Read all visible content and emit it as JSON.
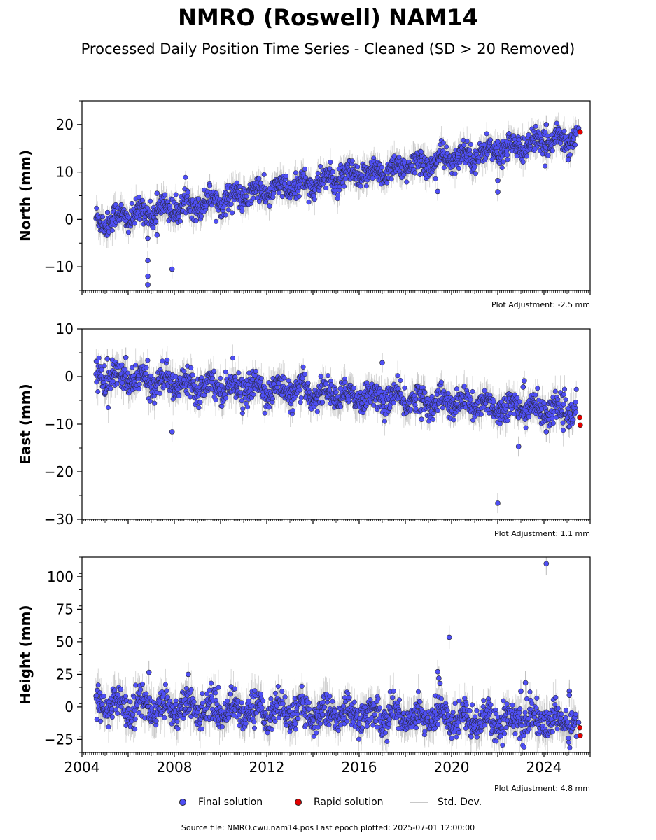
{
  "title": "NMRO (Roswell) NAM14",
  "subtitle": "Processed Daily Position Time Series - Cleaned (SD > 20 Removed)",
  "source_text": "Source file: NMRO.cwu.nam14.pos  Last epoch plotted: 2025-07-01 12:00:00",
  "legend": {
    "final_label": "Final solution",
    "rapid_label": "Rapid solution",
    "std_label": "Std. Dev."
  },
  "colors": {
    "final": "#4f4ff5",
    "rapid": "#e30000",
    "std_dev": "#bbbbbb",
    "edge": "#222222"
  },
  "chart_data": [
    {
      "type": "scatter",
      "ylabel": "North (mm)",
      "adjustment_label": "Plot Adjustment: -2.5 mm",
      "xlim": [
        2004,
        2026
      ],
      "ylim": [
        -15,
        25
      ],
      "yticks": [
        -10,
        0,
        10,
        20
      ],
      "ytick_labels": [
        "−10",
        "0",
        "10",
        "20"
      ],
      "trend": {
        "x": [
          2004.6,
          2025.4
        ],
        "y": [
          -0.5,
          17.5
        ]
      },
      "scatter_sd": 1.3,
      "final_outliers": [
        [
          2006.85,
          -4
        ],
        [
          2006.85,
          -8.7
        ],
        [
          2006.85,
          -12
        ],
        [
          2006.85,
          -13.8
        ],
        [
          2007.25,
          -3.3
        ],
        [
          2007.9,
          -10.5
        ],
        [
          2007.25,
          5.5
        ],
        [
          2019.4,
          5.9
        ],
        [
          2022.0,
          8.2
        ],
        [
          2022.0,
          5.8
        ],
        [
          2022.0,
          16.4
        ],
        [
          2024.1,
          20.0
        ],
        [
          2025.05,
          12.6
        ],
        [
          2025.5,
          19.2
        ]
      ],
      "rapid": [
        [
          2025.55,
          18.5
        ],
        [
          2025.57,
          18.4
        ]
      ]
    },
    {
      "type": "scatter",
      "ylabel": "East (mm)",
      "adjustment_label": "Plot Adjustment: 1.1 mm",
      "xlim": [
        2004,
        2026
      ],
      "ylim": [
        -30,
        10
      ],
      "yticks": [
        -30,
        -20,
        -10,
        0,
        10
      ],
      "ytick_labels": [
        "−30",
        "−20",
        "−10",
        "0",
        "10"
      ],
      "trend": {
        "x": [
          2004.6,
          2025.4
        ],
        "y": [
          0,
          -7.5
        ]
      },
      "scatter_sd": 1.4,
      "final_outliers": [
        [
          2007.9,
          -11.6
        ],
        [
          2005.1,
          3.7
        ],
        [
          2005.9,
          4.0
        ],
        [
          2017.0,
          2.9
        ],
        [
          2018.7,
          -9.0
        ],
        [
          2022.0,
          -26.6
        ],
        [
          2022.9,
          -14.7
        ],
        [
          2023.1,
          -2.2
        ],
        [
          2023.15,
          -0.9
        ],
        [
          2024.1,
          -11.6
        ]
      ],
      "rapid": [
        [
          2025.55,
          -8.6
        ],
        [
          2025.57,
          -10.2
        ]
      ]
    },
    {
      "type": "scatter",
      "ylabel": "Height (mm)",
      "adjustment_label": "Plot Adjustment: 4.8 mm",
      "xlim": [
        2004,
        2026
      ],
      "xticks": [
        2004,
        2008,
        2012,
        2016,
        2020,
        2024
      ],
      "xtick_labels": [
        "2004",
        "2008",
        "2012",
        "2016",
        "2020",
        "2024"
      ],
      "ylim": [
        -35,
        115
      ],
      "yticks": [
        -25,
        0,
        25,
        50,
        75,
        100
      ],
      "ytick_labels": [
        "−25",
        "0",
        "25",
        "50",
        "75",
        "100"
      ],
      "trend": {
        "x": [
          2004.6,
          2025.4
        ],
        "y": [
          2,
          -12
        ]
      },
      "scatter_sd": 6,
      "final_outliers": [
        [
          2006.9,
          26.5
        ],
        [
          2008.6,
          25.0
        ],
        [
          2019.4,
          27.0
        ],
        [
          2019.45,
          22.0
        ],
        [
          2019.5,
          18.0
        ],
        [
          2019.9,
          53.5
        ],
        [
          2023.0,
          12.0
        ],
        [
          2023.2,
          18.5
        ],
        [
          2024.1,
          110.0
        ],
        [
          2025.1,
          12.0
        ],
        [
          2025.1,
          9.0
        ],
        [
          2025.5,
          -12.0
        ]
      ],
      "rapid": [
        [
          2025.55,
          -16.0
        ],
        [
          2025.57,
          -22.0
        ]
      ]
    }
  ]
}
